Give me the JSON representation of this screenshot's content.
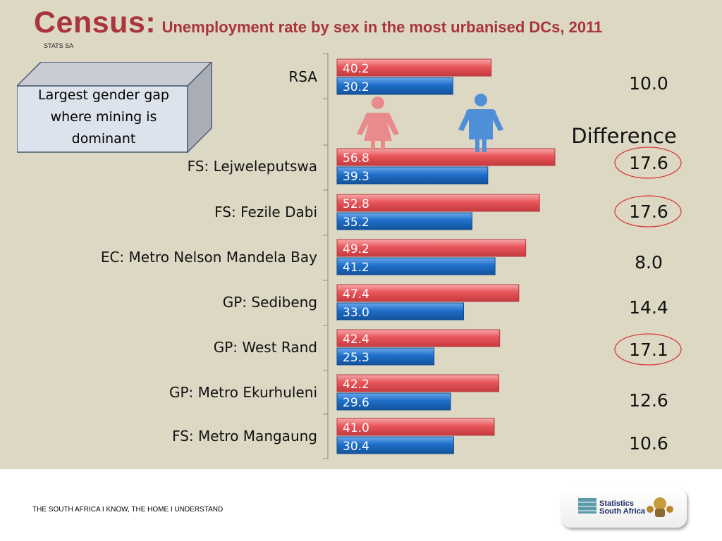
{
  "title": {
    "main": "Census:",
    "sub": "Unemployment rate by sex in the most urbanised DCs, 2011"
  },
  "source_note": "STATS SA",
  "callout": "Largest gender gap where mining is dominant",
  "footer": "THE SOUTH AFRICA I KNOW, THE HOME I UNDERSTAND",
  "logo": {
    "line1": "Statistics",
    "line2": "South Africa"
  },
  "colors": {
    "female": "#e8555a",
    "male": "#1f6fc9",
    "highlight_circle": "#d63a3a",
    "background": "#ddd8c3"
  },
  "icons": [
    "female-figure-icon",
    "male-figure-icon"
  ],
  "chart_data": {
    "type": "bar",
    "orientation": "horizontal",
    "categories": [
      "RSA",
      "FS: Lejweleputswa",
      "FS: Fezile Dabi",
      "EC: Metro Nelson Mandela Bay",
      "GP: Sedibeng",
      "GP: West Rand",
      "GP: Metro Ekurhuleni",
      "FS: Metro Mangaung"
    ],
    "series": [
      {
        "values": [
          40.2,
          56.8,
          52.8,
          49.2,
          47.4,
          42.4,
          42.2,
          41.0
        ]
      },
      {
        "values": [
          30.2,
          39.3,
          35.2,
          41.2,
          33.0,
          25.3,
          29.6,
          30.4
        ]
      }
    ],
    "xlim": [
      0,
      60
    ],
    "difference_title": "Difference",
    "differences": [
      "10.0",
      "17.6",
      "17.6",
      "8.0",
      "14.4",
      "17.1",
      "12.6",
      "10.6"
    ],
    "circled": [
      false,
      true,
      true,
      false,
      false,
      true,
      false,
      false
    ],
    "grid": false,
    "legend": "none"
  }
}
